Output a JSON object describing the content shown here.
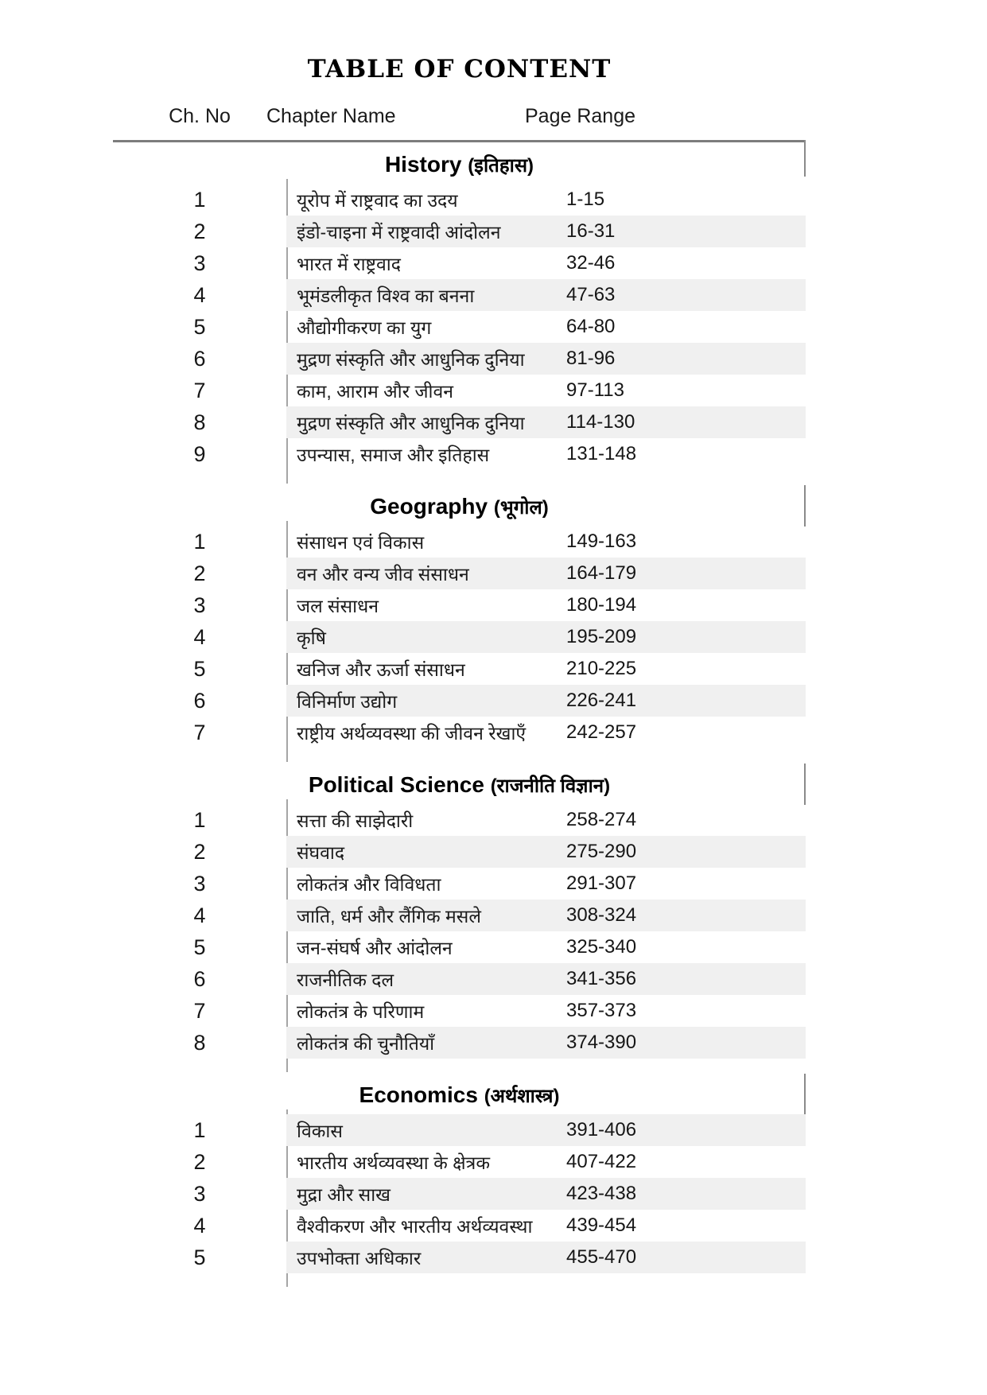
{
  "page": {
    "title": "TABLE OF CONTENT"
  },
  "colors": {
    "row_stripe": "#f0f0f0",
    "header_rule": "#7d7d7d",
    "column_divider": "#a5a5a5",
    "text": "#1b1b1b"
  },
  "table": {
    "columns": [
      "Ch. No",
      "Chapter Name",
      "Page Range"
    ],
    "sections": [
      {
        "id": "history",
        "title_english": "History",
        "title_hindi": "(इतिहास)",
        "striped_rows": "even",
        "rows": [
          {
            "no": "1",
            "chapter": "यूरोप में राष्ट्रवाद का उदय",
            "pages": "1-15"
          },
          {
            "no": "2",
            "chapter": "इंडो-चाइना में राष्ट्रवादी आंदोलन",
            "pages": "16-31"
          },
          {
            "no": "3",
            "chapter": "भारत में राष्ट्रवाद",
            "pages": "32-46"
          },
          {
            "no": "4",
            "chapter": "भूमंडलीकृत विश्व का बनना",
            "pages": "47-63"
          },
          {
            "no": "5",
            "chapter": "औद्योगीकरण का युग",
            "pages": "64-80"
          },
          {
            "no": "6",
            "chapter": "मुद्रण संस्कृति और आधुनिक दुनिया",
            "pages": "81-96"
          },
          {
            "no": "7",
            "chapter": "काम, आराम और जीवन",
            "pages": "97-113"
          },
          {
            "no": "8",
            "chapter": "मुद्रण संस्कृति और आधुनिक दुनिया",
            "pages": "114-130"
          },
          {
            "no": "9",
            "chapter": "उपन्यास, समाज और इतिहास",
            "pages": "131-148"
          }
        ]
      },
      {
        "id": "geography",
        "title_english": "Geography",
        "title_hindi": "(भूगोल)",
        "striped_rows": "even",
        "rows": [
          {
            "no": "1",
            "chapter": "संसाधन एवं विकास",
            "pages": "149-163"
          },
          {
            "no": "2",
            "chapter": "वन और वन्य जीव संसाधन",
            "pages": "164-179"
          },
          {
            "no": "3",
            "chapter": "जल संसाधन",
            "pages": "180-194"
          },
          {
            "no": "4",
            "chapter": "कृषि",
            "pages": "195-209"
          },
          {
            "no": "5",
            "chapter": "खनिज और ऊर्जा संसाधन",
            "pages": "210-225"
          },
          {
            "no": "6",
            "chapter": "विनिर्माण उद्योग",
            "pages": "226-241"
          },
          {
            "no": "7",
            "chapter": "राष्ट्रीय अर्थव्यवस्था की जीवन रेखाएँ",
            "pages": "242-257"
          }
        ]
      },
      {
        "id": "political-science",
        "title_english": "Political Science",
        "title_hindi": "(राजनीति विज्ञान)",
        "striped_rows": "even",
        "rows": [
          {
            "no": "1",
            "chapter": "सत्ता की साझेदारी",
            "pages": "258-274"
          },
          {
            "no": "2",
            "chapter": "संघवाद",
            "pages": "275-290"
          },
          {
            "no": "3",
            "chapter": "लोकतंत्र और विविधता",
            "pages": "291-307"
          },
          {
            "no": "4",
            "chapter": "जाति, धर्म और लैंगिक मसले",
            "pages": "308-324"
          },
          {
            "no": "5",
            "chapter": "जन-संघर्ष और आंदोलन",
            "pages": "325-340"
          },
          {
            "no": "6",
            "chapter": "राजनीतिक दल",
            "pages": "341-356"
          },
          {
            "no": "7",
            "chapter": "लोकतंत्र के परिणाम",
            "pages": "357-373"
          },
          {
            "no": "8",
            "chapter": "लोकतंत्र की चुनौतियाँ",
            "pages": "374-390"
          }
        ]
      },
      {
        "id": "economics",
        "title_english": "Economics",
        "title_hindi": "(अर्थशास्त्र)",
        "striped_rows": "odd",
        "rows": [
          {
            "no": "1",
            "chapter": "विकास",
            "pages": "391-406"
          },
          {
            "no": "2",
            "chapter": "भारतीय अर्थव्यवस्था के क्षेत्रक",
            "pages": "407-422"
          },
          {
            "no": "3",
            "chapter": "मुद्रा और साख",
            "pages": "423-438"
          },
          {
            "no": "4",
            "chapter": "वैश्वीकरण और भारतीय अर्थव्यवस्था",
            "pages": "439-454"
          },
          {
            "no": "5",
            "chapter": "उपभोक्ता अधिकार",
            "pages": "455-470"
          }
        ]
      }
    ]
  }
}
